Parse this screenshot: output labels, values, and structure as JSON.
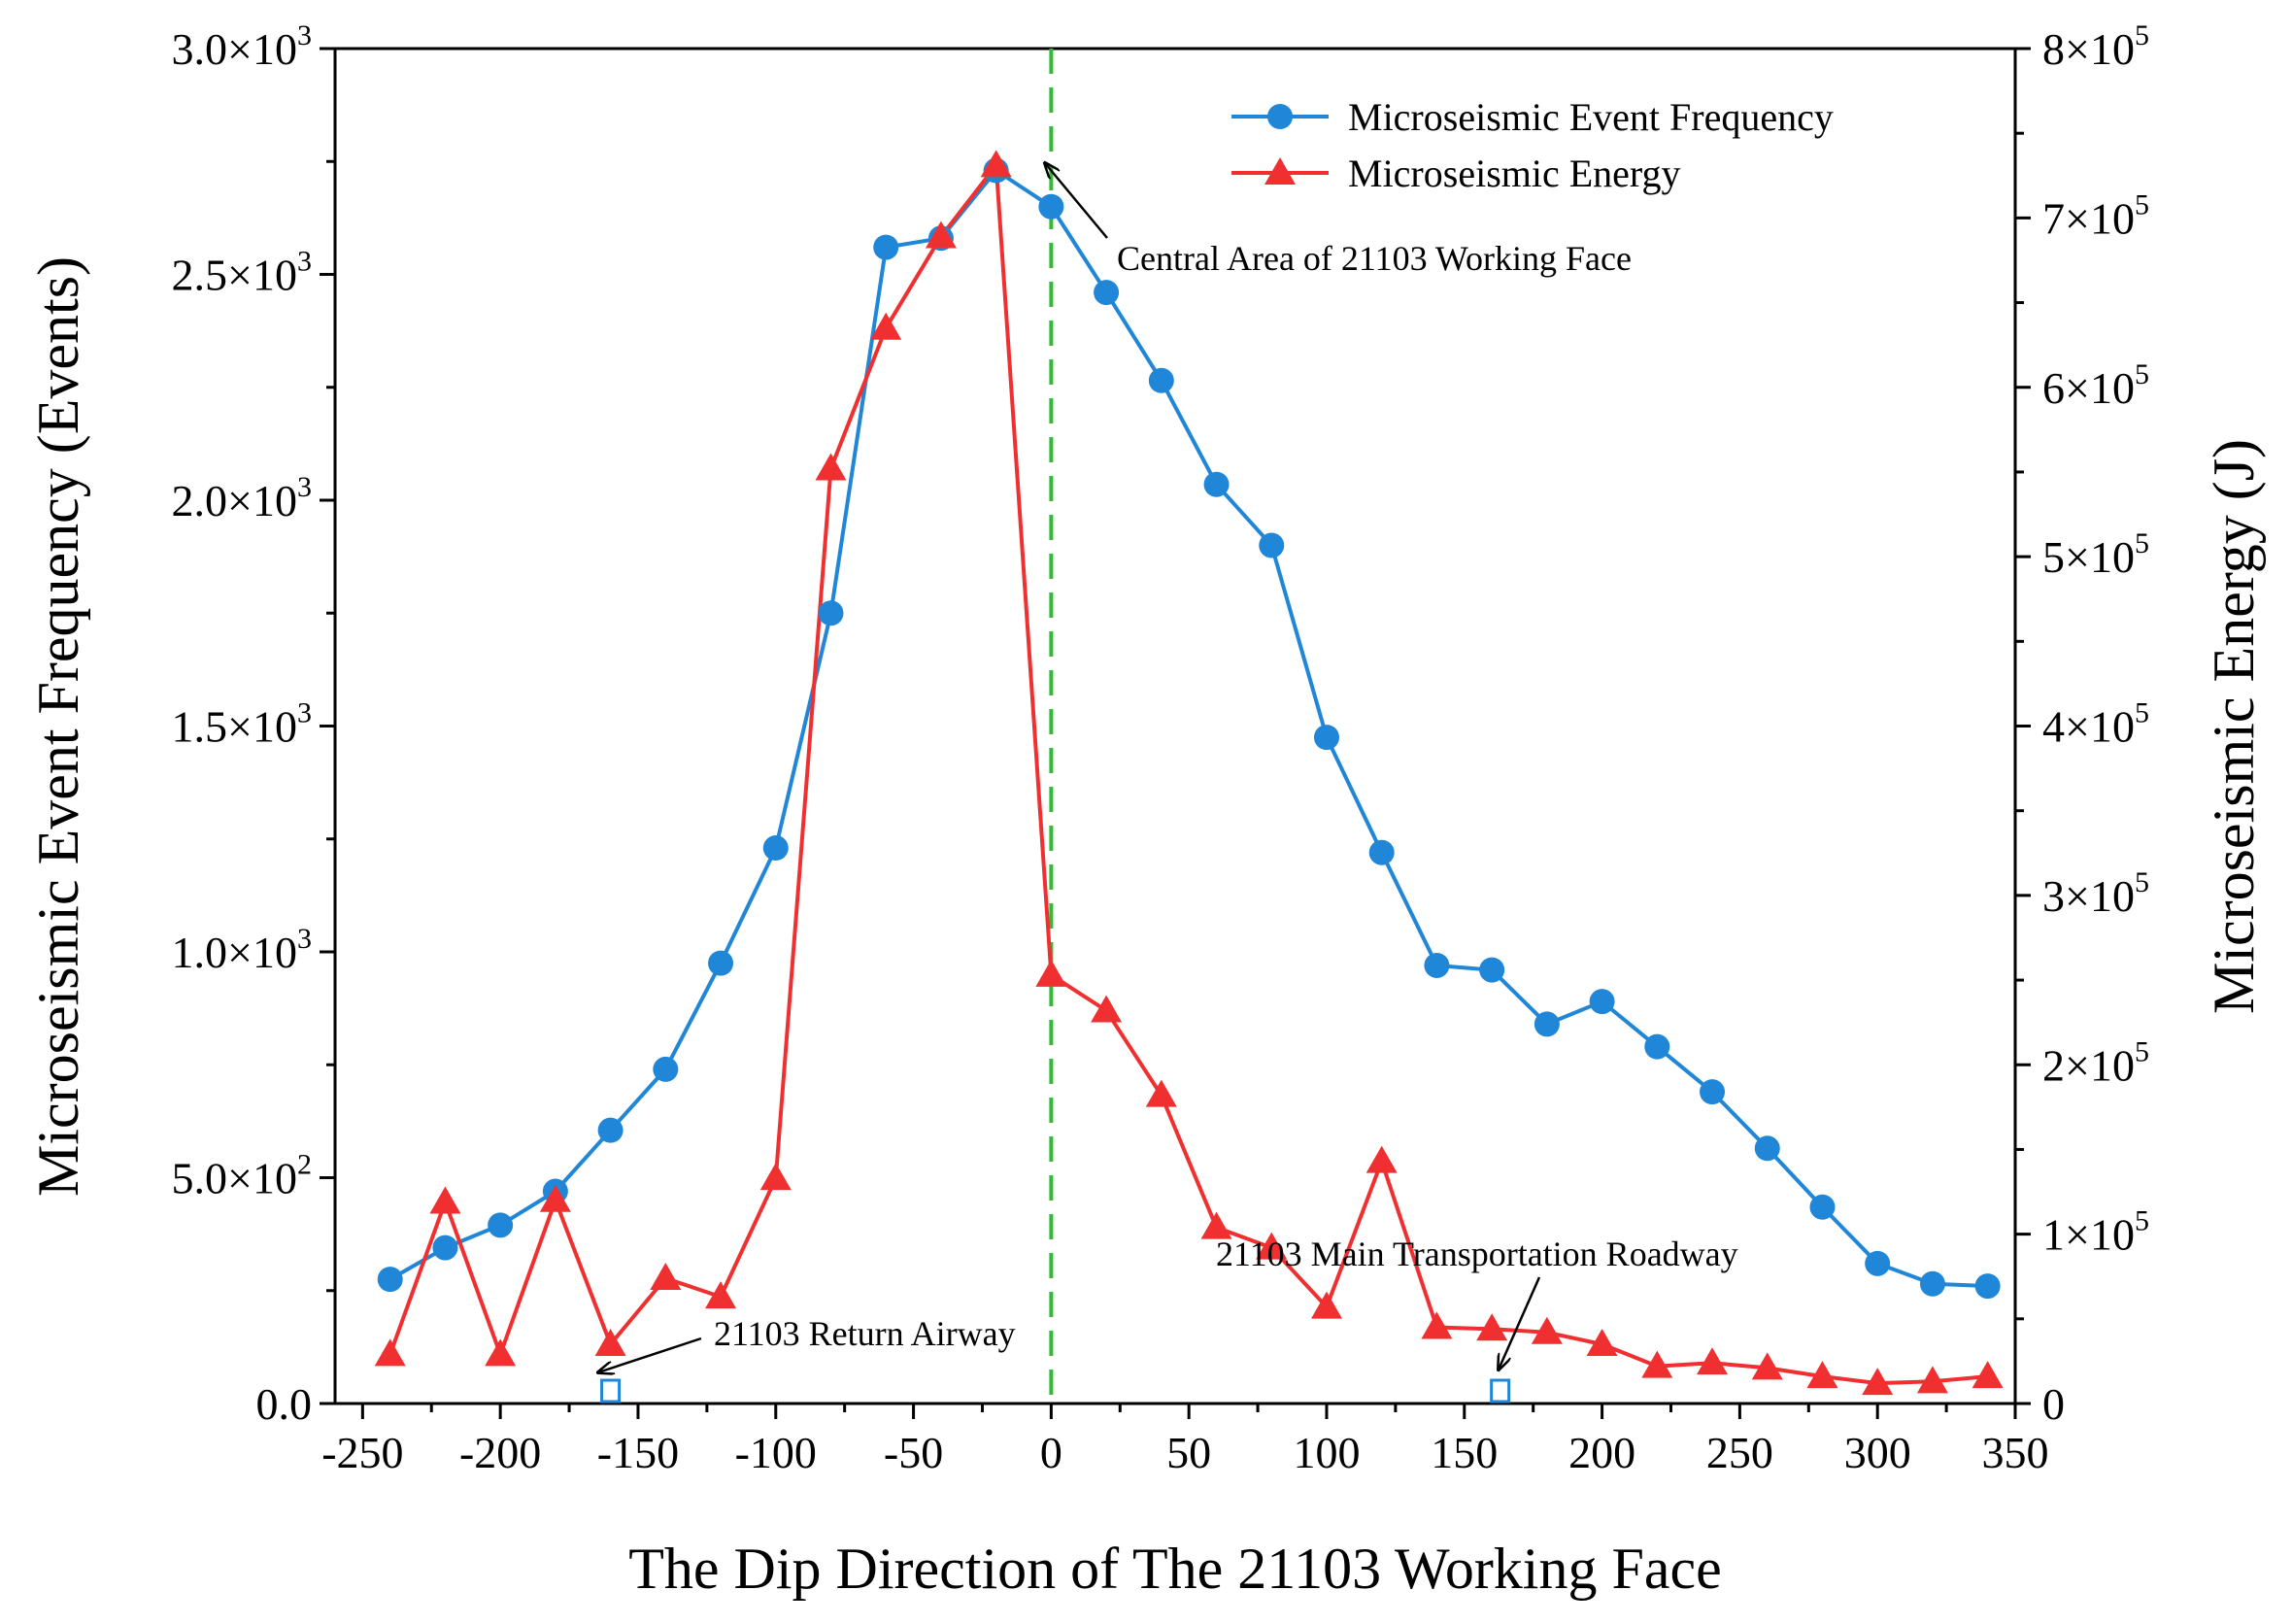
{
  "chart_data": {
    "type": "line",
    "xlabel": "The Dip Direction of The 21103 Working Face",
    "ylabel_left": "Microseismic Event Frequency (Events)",
    "ylabel_right": "Microseismic Energy (J)",
    "xlim": [
      -260,
      350
    ],
    "ylim_left": [
      0,
      3000
    ],
    "ylim_right": [
      0,
      800000
    ],
    "x_ticks": [
      -250,
      -200,
      -150,
      -100,
      -50,
      0,
      50,
      100,
      150,
      200,
      250,
      300,
      350
    ],
    "x_tick_labels": [
      "-250",
      "-200",
      "-150",
      "-100",
      "-50",
      "0",
      "50",
      "100",
      "150",
      "200",
      "250",
      "300",
      "350"
    ],
    "y_left_ticks": [
      0,
      500,
      1000,
      1500,
      2000,
      2500,
      3000
    ],
    "y_left_tick_labels": [
      {
        "mant": "0.0",
        "exp": ""
      },
      {
        "mant": "5.0×10",
        "exp": "2"
      },
      {
        "mant": "1.0×10",
        "exp": "3"
      },
      {
        "mant": "1.5×10",
        "exp": "3"
      },
      {
        "mant": "2.0×10",
        "exp": "3"
      },
      {
        "mant": "2.5×10",
        "exp": "3"
      },
      {
        "mant": "3.0×10",
        "exp": "3"
      }
    ],
    "y_right_ticks": [
      0,
      100000,
      200000,
      300000,
      400000,
      500000,
      600000,
      700000,
      800000
    ],
    "y_right_tick_labels": [
      {
        "mant": "0",
        "exp": ""
      },
      {
        "mant": "1×10",
        "exp": "5"
      },
      {
        "mant": "2×10",
        "exp": "5"
      },
      {
        "mant": "3×10",
        "exp": "5"
      },
      {
        "mant": "4×10",
        "exp": "5"
      },
      {
        "mant": "5×10",
        "exp": "5"
      },
      {
        "mant": "6×10",
        "exp": "5"
      },
      {
        "mant": "7×10",
        "exp": "5"
      },
      {
        "mant": "8×10",
        "exp": "5"
      }
    ],
    "series": [
      {
        "name": "Microseismic Event Frequency",
        "axis": "left",
        "marker": "circle",
        "color": "#1f86d8",
        "x": [
          -240,
          -220,
          -200,
          -180,
          -160,
          -140,
          -120,
          -100,
          -80,
          -60,
          -40,
          -20,
          0,
          20,
          40,
          60,
          80,
          100,
          120,
          140,
          160,
          180,
          200,
          220,
          240,
          260,
          280,
          300,
          320,
          340
        ],
        "values": [
          275,
          345,
          395,
          470,
          605,
          740,
          975,
          1230,
          1750,
          2560,
          2580,
          2730,
          2650,
          2460,
          2265,
          2035,
          1900,
          1475,
          1220,
          970,
          960,
          840,
          890,
          790,
          690,
          565,
          435,
          310,
          265,
          260
        ]
      },
      {
        "name": "Microseismic Energy",
        "axis": "right",
        "marker": "triangle",
        "color": "#f03030",
        "x": [
          -240,
          -220,
          -200,
          -180,
          -160,
          -140,
          -120,
          -100,
          -80,
          -60,
          -40,
          -20,
          0,
          20,
          40,
          60,
          80,
          100,
          120,
          140,
          160,
          180,
          200,
          220,
          240,
          260,
          280,
          300,
          320,
          340
        ],
        "values": [
          29000,
          119000,
          29000,
          120000,
          35000,
          74000,
          63000,
          133000,
          552000,
          635000,
          689000,
          731000,
          253000,
          232000,
          182000,
          104000,
          92000,
          57000,
          143000,
          45000,
          44000,
          42000,
          35000,
          22000,
          24000,
          21000,
          16000,
          12000,
          13000,
          16000
        ]
      }
    ],
    "legend": {
      "position": "top-right",
      "entries": [
        "Microseismic Event Frequency",
        "Microseismic Energy"
      ]
    },
    "reference_line": {
      "x": 0,
      "color": "#33bb33",
      "style": "dashed"
    },
    "roadway_markers": [
      {
        "x": -160,
        "color": "#1f86d8"
      },
      {
        "x": 163,
        "color": "#1f86d8"
      }
    ],
    "annotations": {
      "central_area": "Central Area of 21103 Working Face",
      "return_airway": "21103 Return Airway",
      "main_transport": "21103 Main Transportation Roadway"
    }
  }
}
